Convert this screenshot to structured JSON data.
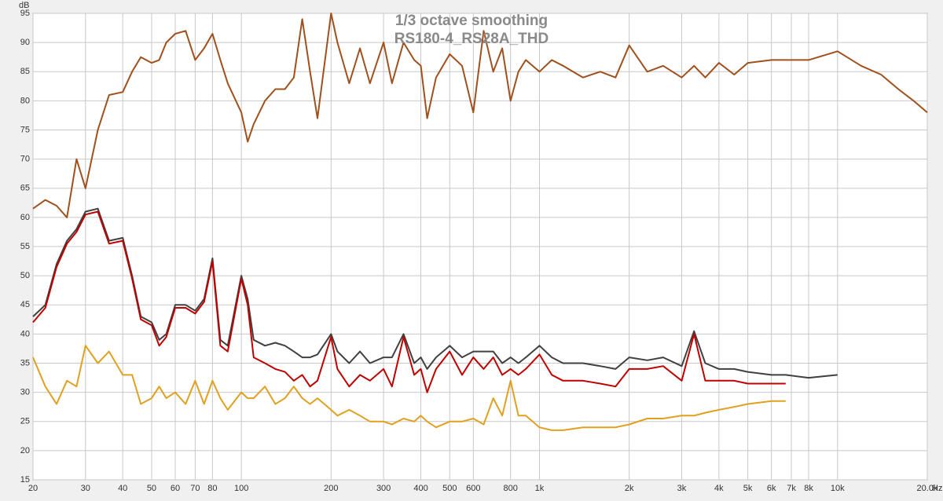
{
  "chart_data": {
    "type": "line",
    "title": "1/3 octave smoothing",
    "subtitle": "RS180-4_RS28A_THD",
    "x_label": "Hz",
    "y_label": "dB",
    "log_x": true,
    "grid": true,
    "xlim": [
      20,
      20000
    ],
    "ylim": [
      15,
      95
    ],
    "yticks": [
      15,
      20,
      25,
      30,
      35,
      40,
      45,
      50,
      55,
      60,
      65,
      70,
      75,
      80,
      85,
      90,
      95
    ],
    "xticks": [
      20,
      30,
      40,
      50,
      60,
      70,
      80,
      100,
      200,
      300,
      400,
      500,
      600,
      800,
      {
        "value": 1000,
        "label": "1k"
      },
      {
        "value": 2000,
        "label": "2k"
      },
      {
        "value": 3000,
        "label": "3k"
      },
      {
        "value": 4000,
        "label": "4k"
      },
      {
        "value": 5000,
        "label": "5k"
      },
      {
        "value": 6000,
        "label": "6k"
      },
      {
        "value": 7000,
        "label": "7k"
      },
      {
        "value": 8000,
        "label": "8k"
      },
      {
        "value": 10000,
        "label": "10k"
      },
      {
        "value": 20000,
        "label": "20.0k"
      }
    ],
    "x": [
      20,
      22,
      24,
      26,
      28,
      30,
      33,
      36,
      40,
      43,
      46,
      50,
      53,
      56,
      60,
      65,
      70,
      75,
      80,
      85,
      90,
      100,
      105,
      110,
      120,
      130,
      140,
      150,
      160,
      170,
      180,
      200,
      210,
      230,
      250,
      270,
      300,
      320,
      350,
      380,
      400,
      420,
      450,
      500,
      550,
      600,
      650,
      700,
      750,
      800,
      850,
      900,
      1000,
      1100,
      1200,
      1400,
      1600,
      1800,
      2000,
      2300,
      2600,
      3000,
      3300,
      3600,
      4000,
      4500,
      5000,
      6000,
      6700,
      8000,
      10000,
      12000,
      14000,
      16000,
      18000,
      20000
    ],
    "series": [
      {
        "color": "#a0501c",
        "values": [
          61.5,
          63,
          62,
          60,
          70,
          65,
          75,
          81,
          81.5,
          85,
          87.5,
          86.5,
          87,
          90,
          91.5,
          92,
          87,
          89,
          91.5,
          87,
          83,
          78,
          73,
          76,
          80,
          82,
          82,
          84,
          94,
          85,
          77,
          95,
          90,
          83,
          89,
          83,
          90,
          83,
          90,
          87,
          86,
          77,
          84,
          88,
          86,
          78,
          92,
          85,
          89,
          80,
          85,
          87,
          85,
          87,
          86,
          84,
          85,
          84,
          89.5,
          85,
          86,
          84,
          86,
          84,
          86.5,
          84.5,
          86.5,
          87,
          87,
          87,
          88.5,
          86,
          84.5,
          82,
          80,
          78
        ]
      },
      {
        "color": "#404040",
        "values": [
          43,
          45,
          52,
          56,
          58,
          61,
          61.5,
          56,
          56.5,
          50,
          43,
          42,
          39,
          40,
          45,
          45,
          44,
          46,
          53,
          39,
          38,
          50,
          46,
          39,
          38,
          38.5,
          38,
          37,
          36,
          36,
          36.5,
          40,
          37,
          35,
          37,
          35,
          36,
          36,
          40,
          35,
          36,
          34,
          36,
          38,
          36,
          37,
          37,
          37,
          35,
          36,
          35,
          36,
          38,
          36,
          35,
          35,
          34.5,
          34,
          36,
          35.5,
          36,
          34.5,
          40.5,
          35,
          34,
          34,
          33.5,
          33,
          33,
          32.5,
          33,
          null,
          null,
          null,
          null,
          null
        ]
      },
      {
        "color": "#c00000",
        "values": [
          42,
          44.5,
          51.5,
          55.5,
          57.5,
          60.5,
          61,
          55.5,
          56,
          49.5,
          42.5,
          41.5,
          38,
          39.5,
          44.5,
          44.5,
          43.5,
          45.5,
          52.5,
          38,
          37,
          49.5,
          45,
          36,
          35,
          34,
          33.5,
          32,
          33,
          31,
          32,
          39.5,
          34,
          31,
          33,
          32,
          34,
          31,
          39.5,
          33,
          34,
          30,
          34,
          37,
          33,
          36,
          34,
          36,
          33,
          34,
          33,
          34,
          36.5,
          33,
          32,
          32,
          31.5,
          31,
          34,
          34,
          34.5,
          32,
          40,
          32,
          32,
          32,
          31.5,
          31.5,
          31.5,
          null,
          null,
          null,
          null,
          null,
          null,
          null
        ]
      },
      {
        "color": "#e0a020",
        "values": [
          36,
          31,
          28,
          32,
          31,
          38,
          35,
          37,
          33,
          33,
          28,
          29,
          31,
          29,
          30,
          28,
          32,
          28,
          32,
          29,
          27,
          30,
          29,
          29,
          31,
          28,
          29,
          31,
          29,
          28,
          29,
          27,
          26,
          27,
          26,
          25,
          25,
          24.5,
          25.5,
          25,
          26,
          25,
          24,
          25,
          25,
          25.5,
          24.5,
          29,
          26,
          32,
          26,
          26,
          24,
          23.5,
          23.5,
          24,
          24,
          24,
          24.5,
          25.5,
          25.5,
          26,
          26,
          26.5,
          27,
          27.5,
          28,
          28.5,
          28.5,
          null,
          null,
          null,
          null,
          null,
          null,
          null
        ]
      }
    ]
  }
}
